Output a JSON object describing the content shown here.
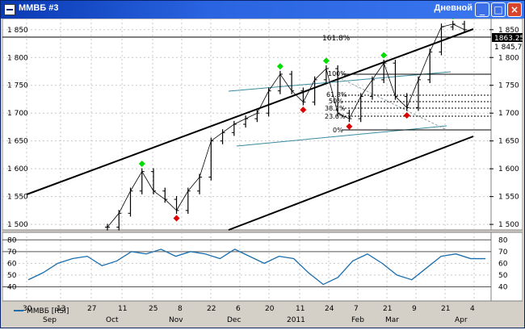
{
  "window": {
    "title": "ММВБ #3",
    "right_label": "Дневной",
    "controls": [
      "_",
      "□",
      "×"
    ]
  },
  "price_panel": {
    "y_ticks": [
      "1 850",
      "1 800",
      "1 750",
      "1 700",
      "1 650",
      "1 600",
      "1 550",
      "1 500"
    ],
    "last_price": "1863.25",
    "last_price2": "1 845,79",
    "fib_labels": [
      "161.8%",
      "100%",
      "61.8%",
      "50%",
      "38.2%",
      "23.6%",
      "0%"
    ]
  },
  "rsi_panel": {
    "legend": "ММВБ [RSI]",
    "y_ticks_left": [
      "80",
      "70",
      "60",
      "50",
      "40"
    ],
    "y_ticks_right": [
      "80",
      "70",
      "60",
      "50",
      "40"
    ]
  },
  "time_axis": {
    "days": [
      "30",
      "13",
      "27",
      "11",
      "25",
      "8",
      "22",
      "6",
      "20",
      "11",
      "24",
      "7",
      "21",
      "9",
      "21",
      "4"
    ],
    "months": [
      "Sep",
      "Oct",
      "Nov",
      "Dec",
      "2011",
      "Feb",
      "Mar",
      "Apr"
    ]
  },
  "chart_data": {
    "type": "line",
    "title": "",
    "xlabel": "",
    "ylabel": "",
    "ylim": [
      1490,
      1870
    ],
    "series": [
      {
        "name": "ММВБ",
        "values": [
          1495,
          1520,
          1560,
          1595,
          1560,
          1545,
          1525,
          1560,
          1585,
          1650,
          1665,
          1680,
          1690,
          1700,
          1740,
          1770,
          1740,
          1720,
          1760,
          1780,
          1700,
          1690,
          1730,
          1760,
          1790,
          1730,
          1710,
          1760,
          1810,
          1855,
          1860,
          1850
        ]
      },
      {
        "name": "RSI",
        "values": [
          46,
          52,
          60,
          64,
          66,
          58,
          62,
          70,
          68,
          72,
          66,
          70,
          68,
          64,
          72,
          66,
          60,
          66,
          64,
          52,
          42,
          48,
          62,
          68,
          60,
          50,
          46,
          56,
          66,
          68,
          64,
          64
        ]
      }
    ],
    "grid": true
  },
  "colors": {
    "price": "#000000",
    "up_marker": "#00dd00",
    "down_marker": "#dd0000",
    "fib": "#3a8aa0",
    "rsi": "#1a6eae"
  }
}
